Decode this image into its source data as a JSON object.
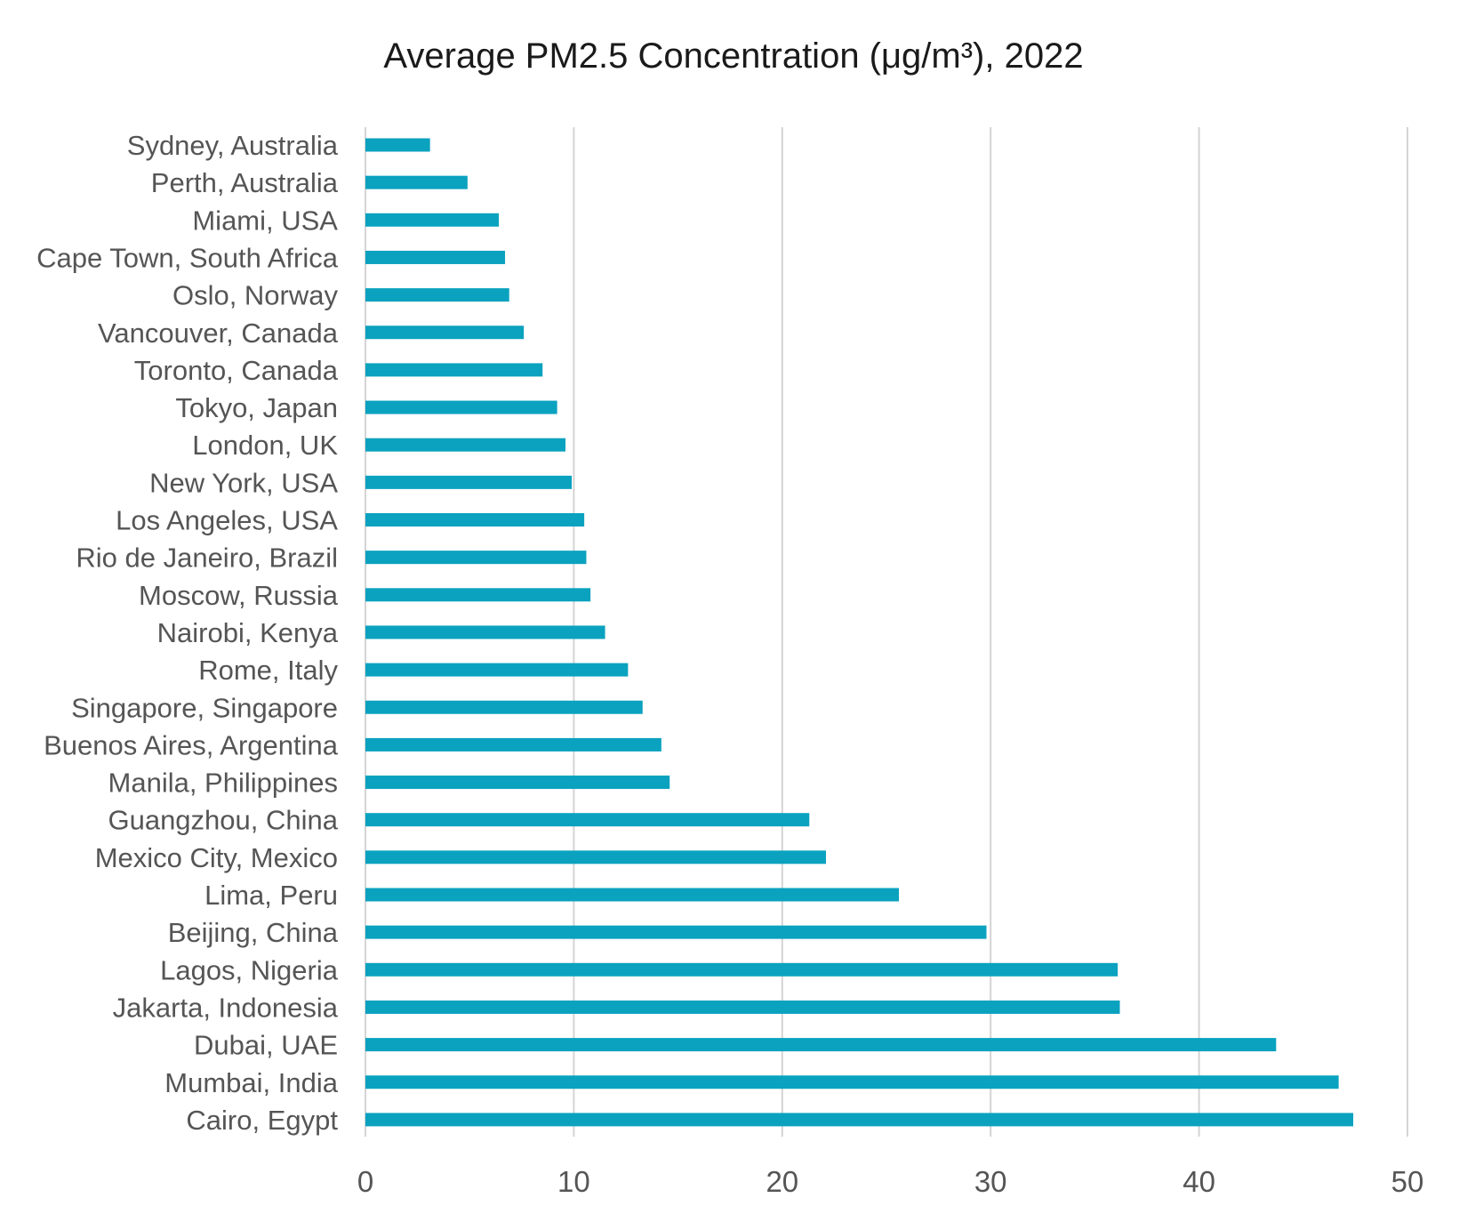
{
  "chart_data": {
    "type": "bar",
    "orientation": "horizontal",
    "title": "Average PM2.5  Concentration (μg/m³), 2022",
    "xlabel": "",
    "ylabel": "",
    "xlim": [
      0,
      50
    ],
    "x_ticks": [
      0,
      10,
      20,
      30,
      40,
      50
    ],
    "grid": true,
    "legend": "none",
    "bar_color": "#0aa2bf",
    "categories": [
      "Sydney, Australia",
      "Perth, Australia",
      "Miami, USA",
      "Cape Town, South Africa",
      "Oslo, Norway",
      "Vancouver, Canada",
      "Toronto, Canada",
      "Tokyo, Japan",
      "London, UK",
      "New York, USA",
      "Los Angeles, USA",
      "Rio de Janeiro, Brazil",
      "Moscow, Russia",
      "Nairobi, Kenya",
      "Rome, Italy",
      "Singapore, Singapore",
      "Buenos Aires, Argentina",
      "Manila, Philippines",
      "Guangzhou, China",
      "Mexico City, Mexico",
      "Lima, Peru",
      "Beijing, China",
      "Lagos, Nigeria",
      "Jakarta, Indonesia",
      "Dubai, UAE",
      "Mumbai, India",
      "Cairo, Egypt"
    ],
    "values": [
      3.1,
      4.9,
      6.4,
      6.7,
      6.9,
      7.6,
      8.5,
      9.2,
      9.6,
      9.9,
      10.5,
      10.6,
      10.8,
      11.5,
      12.6,
      13.3,
      14.2,
      14.6,
      21.3,
      22.1,
      25.6,
      29.8,
      36.1,
      36.2,
      43.7,
      46.7,
      47.4
    ]
  }
}
